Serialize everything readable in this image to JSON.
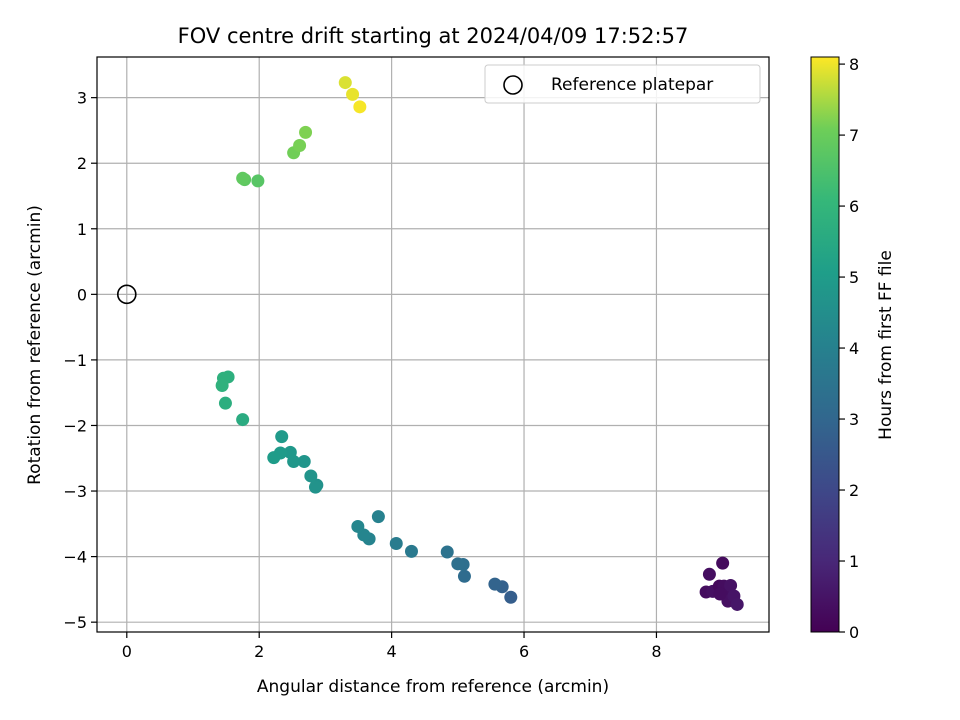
{
  "chart_data": {
    "type": "scatter",
    "title": "FOV centre drift starting at 2024/04/09 17:52:57",
    "xlabel": "Angular distance from reference (arcmin)",
    "ylabel": "Rotation from reference (arcmin)",
    "xlim": [
      -0.45,
      9.7
    ],
    "ylim": [
      -5.15,
      3.62
    ],
    "xticks": [
      0,
      2,
      4,
      6,
      8
    ],
    "yticks": [
      -5,
      -4,
      -3,
      -2,
      -1,
      0,
      1,
      2,
      3
    ],
    "grid": true,
    "legend": {
      "position": "top-right",
      "entries": [
        "Reference platepar"
      ]
    },
    "reference": {
      "x": 0,
      "y": 0
    },
    "colorbar": {
      "label": "Hours from first FF file",
      "range": [
        0,
        8.1
      ],
      "ticks": [
        0,
        1,
        2,
        3,
        4,
        5,
        6,
        7,
        8
      ],
      "colormap": "viridis"
    },
    "points": [
      {
        "x": 8.75,
        "y": -4.54,
        "h": 0.3
      },
      {
        "x": 8.8,
        "y": -4.27,
        "h": 0.35
      },
      {
        "x": 8.85,
        "y": -4.53,
        "h": 0.4
      },
      {
        "x": 8.95,
        "y": -4.45,
        "h": 0.2
      },
      {
        "x": 9.0,
        "y": -4.1,
        "h": 0.25
      },
      {
        "x": 9.02,
        "y": -4.45,
        "h": 0.3
      },
      {
        "x": 9.05,
        "y": -4.58,
        "h": 0.35
      },
      {
        "x": 9.08,
        "y": -4.68,
        "h": 0.4
      },
      {
        "x": 9.12,
        "y": -4.44,
        "h": 0.45
      },
      {
        "x": 9.17,
        "y": -4.6,
        "h": 0.5
      },
      {
        "x": 9.22,
        "y": -4.73,
        "h": 0.55
      },
      {
        "x": 8.96,
        "y": -4.57,
        "h": 0.3
      },
      {
        "x": 5.8,
        "y": -4.62,
        "h": 2.7
      },
      {
        "x": 5.67,
        "y": -4.46,
        "h": 2.8
      },
      {
        "x": 5.56,
        "y": -4.42,
        "h": 2.9
      },
      {
        "x": 5.1,
        "y": -4.3,
        "h": 3.2
      },
      {
        "x": 5.08,
        "y": -4.12,
        "h": 3.3
      },
      {
        "x": 5.0,
        "y": -4.11,
        "h": 3.35
      },
      {
        "x": 4.84,
        "y": -3.93,
        "h": 3.45
      },
      {
        "x": 4.3,
        "y": -3.92,
        "h": 3.7
      },
      {
        "x": 4.07,
        "y": -3.8,
        "h": 3.8
      },
      {
        "x": 3.8,
        "y": -3.39,
        "h": 4.0
      },
      {
        "x": 3.66,
        "y": -3.73,
        "h": 4.1
      },
      {
        "x": 3.58,
        "y": -3.67,
        "h": 4.15
      },
      {
        "x": 3.49,
        "y": -3.54,
        "h": 4.2
      },
      {
        "x": 2.87,
        "y": -2.91,
        "h": 4.6
      },
      {
        "x": 2.85,
        "y": -2.94,
        "h": 4.65
      },
      {
        "x": 2.78,
        "y": -2.77,
        "h": 4.7
      },
      {
        "x": 2.68,
        "y": -2.55,
        "h": 4.75
      },
      {
        "x": 2.52,
        "y": -2.55,
        "h": 4.8
      },
      {
        "x": 2.47,
        "y": -2.41,
        "h": 4.85
      },
      {
        "x": 2.34,
        "y": -2.17,
        "h": 4.9
      },
      {
        "x": 2.32,
        "y": -2.42,
        "h": 4.95
      },
      {
        "x": 2.22,
        "y": -2.49,
        "h": 5.0
      },
      {
        "x": 1.75,
        "y": -1.91,
        "h": 5.6
      },
      {
        "x": 1.49,
        "y": -1.66,
        "h": 5.7
      },
      {
        "x": 1.53,
        "y": -1.26,
        "h": 5.75
      },
      {
        "x": 1.46,
        "y": -1.28,
        "h": 5.8
      },
      {
        "x": 1.44,
        "y": -1.39,
        "h": 5.85
      },
      {
        "x": 1.98,
        "y": 1.73,
        "h": 6.7
      },
      {
        "x": 1.78,
        "y": 1.75,
        "h": 6.8
      },
      {
        "x": 1.75,
        "y": 1.77,
        "h": 6.85
      },
      {
        "x": 2.52,
        "y": 2.16,
        "h": 7.1
      },
      {
        "x": 2.61,
        "y": 2.27,
        "h": 7.15
      },
      {
        "x": 2.7,
        "y": 2.47,
        "h": 7.2
      },
      {
        "x": 3.3,
        "y": 3.23,
        "h": 7.85
      },
      {
        "x": 3.41,
        "y": 3.05,
        "h": 7.95
      },
      {
        "x": 3.52,
        "y": 2.86,
        "h": 8.05
      }
    ]
  }
}
